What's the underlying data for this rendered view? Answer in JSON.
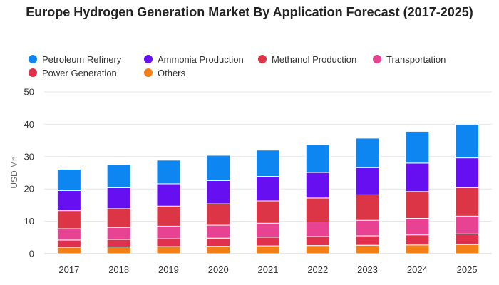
{
  "chart_data": {
    "type": "bar",
    "stacked": true,
    "title": "Europe Hydrogen Generation Market By Application Forecast (2017-2025)",
    "xlabel": "",
    "ylabel": "USD Mn",
    "ylim": [
      0,
      50
    ],
    "yticks": [
      0,
      10,
      20,
      30,
      40,
      50
    ],
    "grid": true,
    "legend_position": "top",
    "categories": [
      "2017",
      "2018",
      "2019",
      "2020",
      "2021",
      "2022",
      "2023",
      "2024",
      "2025"
    ],
    "series": [
      {
        "name": "Others",
        "color": "#f57f17",
        "values": [
          2.0,
          2.1,
          2.2,
          2.3,
          2.4,
          2.5,
          2.6,
          2.7,
          2.8
        ]
      },
      {
        "name": "Power Generation",
        "color": "#e0304e",
        "values": [
          2.2,
          2.3,
          2.4,
          2.5,
          2.7,
          2.8,
          2.9,
          3.1,
          3.3
        ]
      },
      {
        "name": "Transportation",
        "color": "#e84393",
        "values": [
          3.5,
          3.7,
          3.9,
          4.0,
          4.3,
          4.5,
          4.8,
          5.1,
          5.5
        ]
      },
      {
        "name": "Methanol Production",
        "color": "#dc3545",
        "values": [
          5.6,
          5.8,
          6.2,
          6.6,
          6.9,
          7.4,
          7.9,
          8.3,
          8.8
        ]
      },
      {
        "name": "Ammonia Production",
        "color": "#6610f2",
        "values": [
          6.2,
          6.5,
          6.9,
          7.2,
          7.6,
          7.9,
          8.4,
          8.8,
          9.2
        ]
      },
      {
        "name": "Petroleum Refinery",
        "color": "#0d86f2",
        "values": [
          6.6,
          7.1,
          7.3,
          7.8,
          8.1,
          8.6,
          9.1,
          9.8,
          10.4
        ]
      }
    ]
  },
  "legend": {
    "items": [
      {
        "label": "Petroleum Refinery",
        "color": "#0d86f2"
      },
      {
        "label": "Ammonia Production",
        "color": "#6610f2"
      },
      {
        "label": "Methanol Production",
        "color": "#dc3545"
      },
      {
        "label": "Transportation",
        "color": "#e84393"
      },
      {
        "label": "Power Generation",
        "color": "#e0304e"
      },
      {
        "label": "Others",
        "color": "#f57f17"
      }
    ]
  }
}
